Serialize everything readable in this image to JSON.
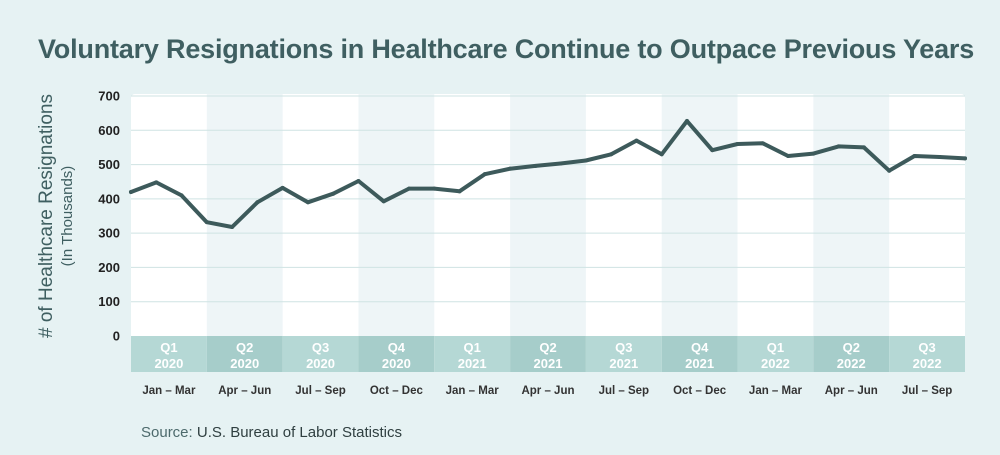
{
  "title": "Voluntary Resignations in Healthcare Continue to Outpace Previous Years",
  "source": {
    "label": "Source:",
    "text": "U.S. Bureau of Labor Statistics"
  },
  "colors": {
    "background": "#e6f2f3",
    "plot_band_light": "#ffffff",
    "plot_band_shaded": "#eef5f7",
    "quarter_band_light": "#b5d8d5",
    "quarter_band_dark": "#a6cdca",
    "line": "#3d5a5b",
    "grid": "#cfe3e3"
  },
  "chart_data": {
    "type": "line",
    "title": "Voluntary Resignations in Healthcare Continue to Outpace Previous Years",
    "ylabel": "# of Healthcare Resignations",
    "ylabel_sub": "(In Thousands)",
    "xlabel": "",
    "ylim": [
      0,
      700
    ],
    "yticks": [
      "0",
      "100",
      "200",
      "300",
      "400",
      "500",
      "600",
      "700"
    ],
    "grid": true,
    "quarters": [
      {
        "q": "Q1",
        "year": "2020",
        "months": "Jan – Mar"
      },
      {
        "q": "Q2",
        "year": "2020",
        "months": "Apr – Jun"
      },
      {
        "q": "Q3",
        "year": "2020",
        "months": "Jul – Sep"
      },
      {
        "q": "Q4",
        "year": "2020",
        "months": "Oct – Dec"
      },
      {
        "q": "Q1",
        "year": "2021",
        "months": "Jan – Mar"
      },
      {
        "q": "Q2",
        "year": "2021",
        "months": "Apr – Jun"
      },
      {
        "q": "Q3",
        "year": "2021",
        "months": "Jul – Sep"
      },
      {
        "q": "Q4",
        "year": "2021",
        "months": "Oct – Dec"
      },
      {
        "q": "Q1",
        "year": "2022",
        "months": "Jan – Mar"
      },
      {
        "q": "Q2",
        "year": "2022",
        "months": "Apr – Jun"
      },
      {
        "q": "Q3",
        "year": "2022",
        "months": "Jul – Sep"
      }
    ],
    "series": [
      {
        "values": [
          420,
          448,
          410,
          332,
          318,
          390,
          432,
          390,
          415,
          452,
          393,
          430,
          430,
          422,
          472,
          488,
          496,
          503,
          512,
          530,
          570,
          530,
          627,
          542,
          560,
          562,
          525,
          532,
          553,
          550,
          482,
          525,
          522,
          518
        ]
      }
    ]
  }
}
